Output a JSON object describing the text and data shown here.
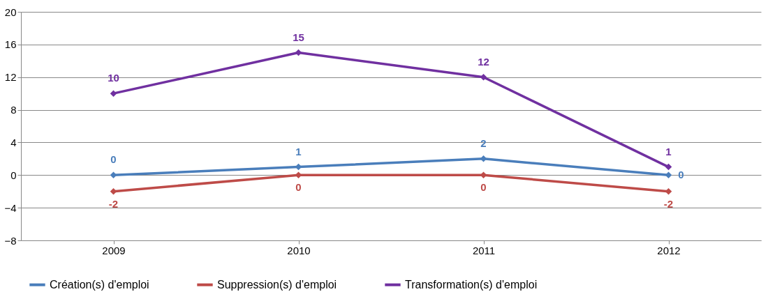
{
  "chart_data": {
    "type": "line",
    "categories": [
      "2009",
      "2010",
      "2011",
      "2012"
    ],
    "series": [
      {
        "name": "Création(s) d'emploi",
        "color": "#4a7ebb",
        "values": [
          0,
          1,
          2,
          0
        ]
      },
      {
        "name": "Suppression(s) d'emploi",
        "color": "#be4b48",
        "values": [
          -2,
          0,
          0,
          -2
        ]
      },
      {
        "name": "Transformation(s) d'emploi",
        "color": "#7030a0",
        "values": [
          10,
          15,
          12,
          1
        ]
      }
    ],
    "ylim": [
      -8,
      20
    ],
    "yticks": [
      -8,
      -4,
      0,
      4,
      8,
      12,
      16,
      20
    ],
    "grid": "y",
    "legend": "bottom",
    "marker": "diamond",
    "line_style": "solid",
    "data_labels": true
  }
}
